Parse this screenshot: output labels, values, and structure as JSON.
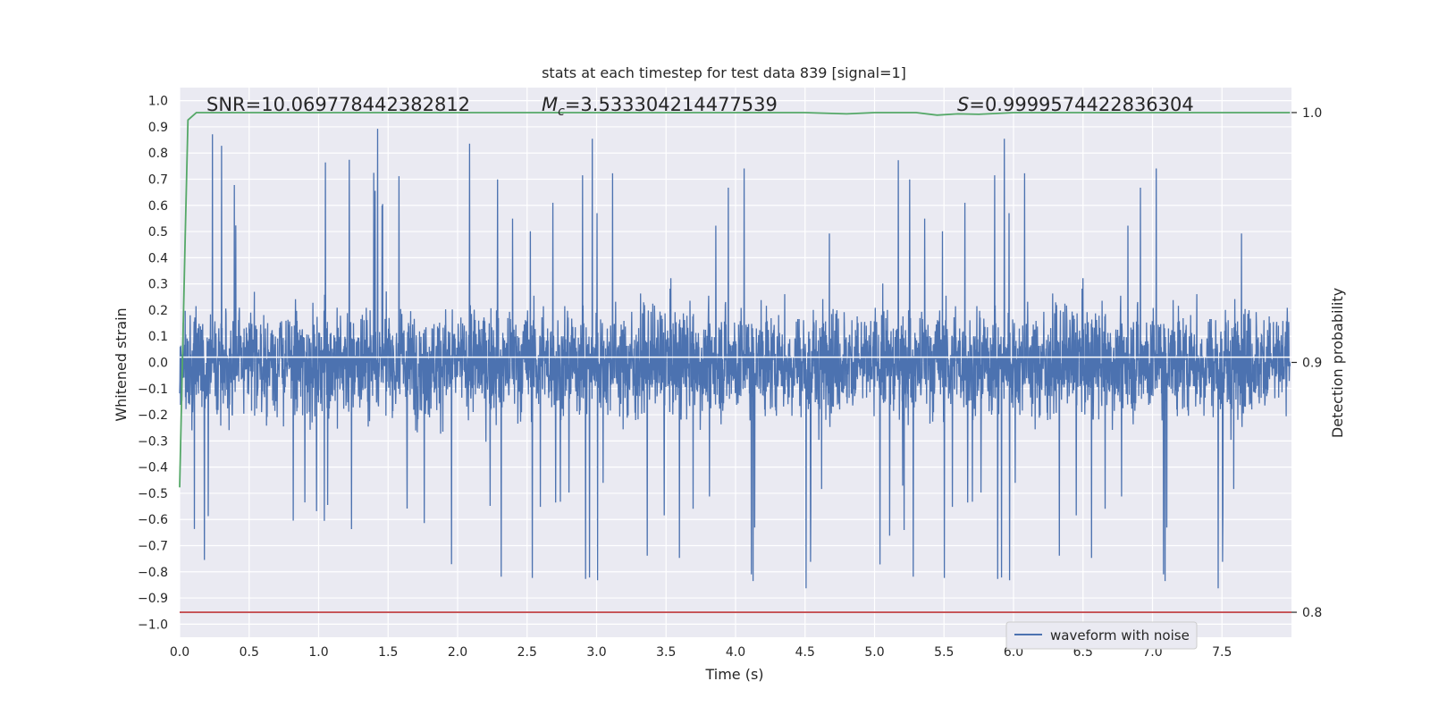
{
  "chart_data": {
    "type": "line",
    "title": "stats at each timestep for test data 839 [signal=1]",
    "xlabel": "Time (s)",
    "ylabel": "Whitened strain",
    "y2label": "Detection probability",
    "xlim": [
      0.0,
      8.0
    ],
    "ylim": [
      -1.05,
      1.05
    ],
    "y2lim": [
      0.79,
      1.01
    ],
    "xticks": [
      "0.0",
      "0.5",
      "1.0",
      "1.5",
      "2.0",
      "2.5",
      "3.0",
      "3.5",
      "4.0",
      "4.5",
      "5.0",
      "5.5",
      "6.0",
      "6.5",
      "7.0",
      "7.5"
    ],
    "yticks": [
      "1.0",
      "0.9",
      "0.8",
      "0.7",
      "0.6",
      "0.5",
      "0.4",
      "0.3",
      "0.2",
      "0.1",
      "0.0",
      "−0.1",
      "−0.2",
      "−0.3",
      "−0.4",
      "−0.5",
      "−0.6",
      "−0.7",
      "−0.8",
      "−0.9",
      "−1.0"
    ],
    "y2ticks": [
      "1.0",
      "0.9",
      "0.8"
    ],
    "annotations": {
      "snr": "SNR=10.069778442382812",
      "mc_symbol": "M",
      "mc_sub": "c",
      "mc_value": "=3.533304214477539",
      "s_symbol": "S",
      "s_value": "=0.9999574422836304"
    },
    "legend": {
      "placement": "lower-right",
      "entries": [
        "waveform with noise"
      ]
    },
    "grid": true,
    "colors": {
      "background": "#eaeaf2",
      "waveform": "#4c72b0",
      "probability": "#55a868",
      "threshold": "#c44e52",
      "grid": "#ffffff"
    },
    "series": [
      {
        "name": "waveform with noise",
        "axis": "left",
        "description_values": "noise band approx ±0.3..0.6 with spikes",
        "x_range": [
          0.0,
          7.99
        ]
      },
      {
        "axis": "right",
        "x": [
          0.0,
          0.02,
          0.04,
          0.06,
          0.12,
          0.5,
          1.0,
          2.0,
          3.0,
          4.0,
          4.5,
          4.8,
          5.0,
          5.3,
          5.45,
          5.6,
          5.75,
          6.0,
          7.0,
          7.99
        ],
        "values": [
          0.85,
          0.9,
          0.95,
          0.997,
          1.0,
          1.0,
          1.0,
          1.0,
          1.0,
          1.0,
          1.0,
          0.9995,
          1.0,
          1.0,
          0.999,
          0.9995,
          0.9993,
          1.0,
          1.0,
          1.0
        ]
      },
      {
        "axis": "right",
        "type": "hline",
        "y": 0.8
      }
    ]
  }
}
